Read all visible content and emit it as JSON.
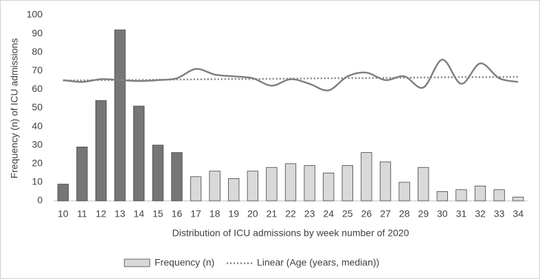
{
  "chart_data": {
    "type": "combo",
    "x_label": "Distribution of ICU admissions by week number of 2020",
    "y_label": "Frequency (n) of ICU admissions",
    "categories": [
      "10",
      "11",
      "12",
      "13",
      "14",
      "15",
      "16",
      "17",
      "18",
      "19",
      "20",
      "21",
      "22",
      "23",
      "24",
      "25",
      "26",
      "27",
      "28",
      "29",
      "30",
      "31",
      "32",
      "33",
      "34"
    ],
    "series": [
      {
        "name": "Frequency (n)",
        "type": "bar",
        "color": "#d9d9d9",
        "colors": [
          "#767676",
          "#767676",
          "#767676",
          "#767676",
          "#767676",
          "#767676",
          "#767676",
          "#d9d9d9",
          "#d9d9d9",
          "#d9d9d9",
          "#d9d9d9",
          "#d9d9d9",
          "#d9d9d9",
          "#d9d9d9",
          "#d9d9d9",
          "#d9d9d9",
          "#d9d9d9",
          "#d9d9d9",
          "#d9d9d9",
          "#d9d9d9",
          "#d9d9d9",
          "#d9d9d9",
          "#d9d9d9",
          "#d9d9d9",
          "#d9d9d9"
        ],
        "values": [
          9,
          29,
          54,
          92,
          51,
          30,
          26,
          13,
          16,
          12,
          16,
          18,
          20,
          19,
          15,
          19,
          26,
          21,
          10,
          18,
          5,
          6,
          8,
          6,
          2
        ]
      },
      {
        "type": "line",
        "color": "#7f7f7f",
        "values": [
          65,
          64,
          65.5,
          65,
          64.5,
          65,
          66,
          71,
          68,
          67,
          66,
          62,
          65.5,
          63,
          59.5,
          67,
          69,
          65,
          67,
          61,
          76,
          63,
          74,
          66,
          64
        ]
      },
      {
        "name": "Linear (Age (years, median))",
        "type": "trend",
        "color": "#7f7f7f",
        "values": [
          64.8,
          64.9,
          65.0,
          65.1,
          65.1,
          65.2,
          65.3,
          65.4,
          65.5,
          65.6,
          65.6,
          65.7,
          65.8,
          65.9,
          66.0,
          66.1,
          66.1,
          66.2,
          66.3,
          66.4,
          66.5,
          66.6,
          66.6,
          66.7,
          66.8
        ]
      }
    ],
    "ylim": [
      0,
      100
    ],
    "yticks": [
      0,
      10,
      20,
      30,
      40,
      50,
      60,
      70,
      80,
      90,
      100
    ],
    "grid": false
  }
}
